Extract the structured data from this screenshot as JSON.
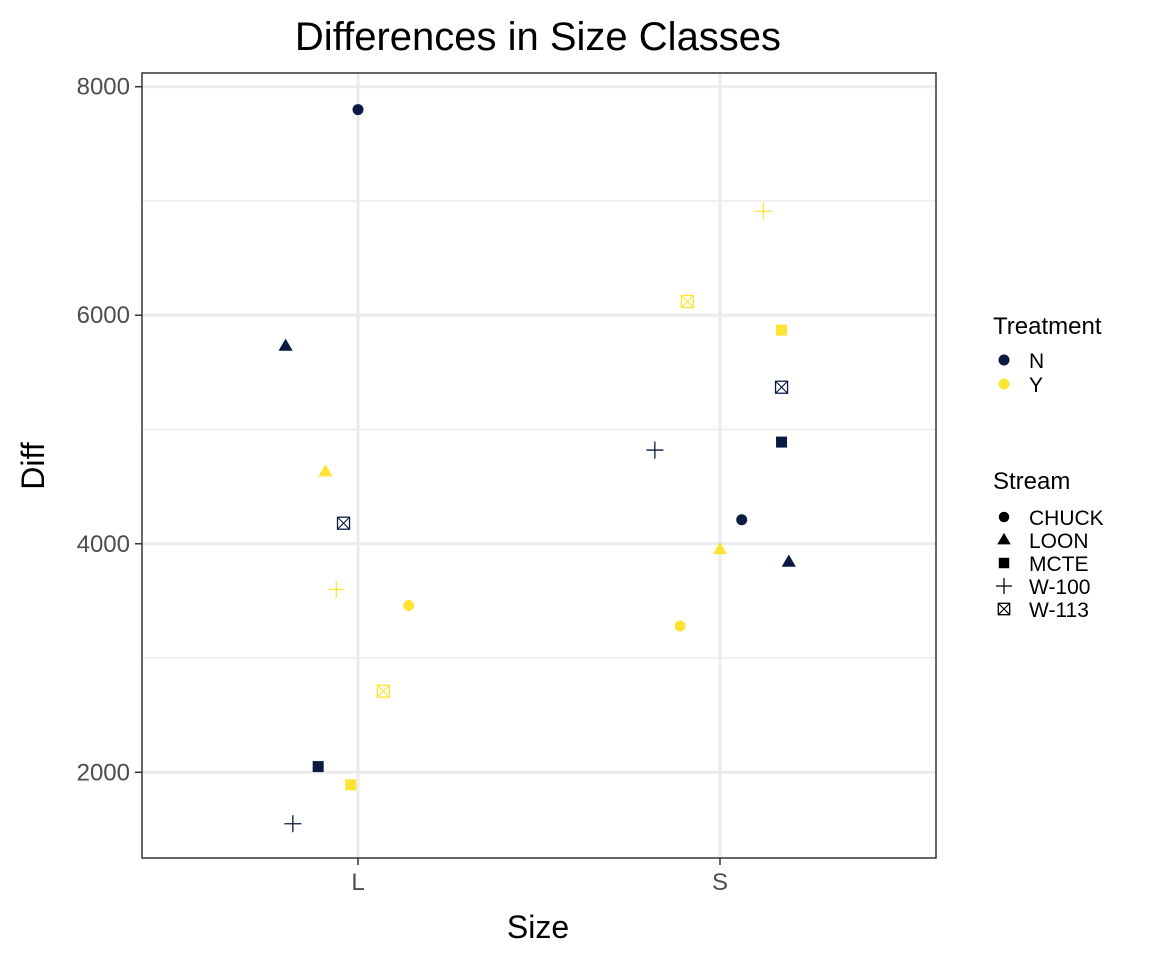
{
  "chart_data": {
    "type": "scatter",
    "title": "Differences in Size Classes",
    "xlabel": "Size",
    "ylabel": "Diff",
    "x_categories": [
      "L",
      "S"
    ],
    "ylim": [
      1250,
      8120
    ],
    "yticks": [
      2000,
      4000,
      6000,
      8000
    ],
    "grid": true,
    "legend_position": "right",
    "treatment_legend": {
      "title": "Treatment",
      "entries": [
        {
          "label": "N",
          "color": "#0b1a40"
        },
        {
          "label": "Y",
          "color": "#fde433"
        }
      ]
    },
    "stream_legend": {
      "title": "Stream",
      "entries": [
        {
          "label": "CHUCK",
          "shape": "circle"
        },
        {
          "label": "LOON",
          "shape": "triangle"
        },
        {
          "label": "MCTE",
          "shape": "square"
        },
        {
          "label": "W-100",
          "shape": "plus"
        },
        {
          "label": "W-113",
          "shape": "boxx"
        }
      ]
    },
    "points": [
      {
        "size": "L",
        "jitter": 0.0,
        "diff": 7800,
        "treatment": "N",
        "stream": "CHUCK"
      },
      {
        "size": "L",
        "jitter": -0.2,
        "diff": 5730,
        "treatment": "N",
        "stream": "LOON"
      },
      {
        "size": "L",
        "jitter": -0.09,
        "diff": 4630,
        "treatment": "Y",
        "stream": "LOON"
      },
      {
        "size": "L",
        "jitter": -0.04,
        "diff": 4180,
        "treatment": "N",
        "stream": "W-113"
      },
      {
        "size": "L",
        "jitter": -0.06,
        "diff": 3600,
        "treatment": "Y",
        "stream": "W-100"
      },
      {
        "size": "L",
        "jitter": 0.14,
        "diff": 3460,
        "treatment": "Y",
        "stream": "CHUCK"
      },
      {
        "size": "L",
        "jitter": 0.07,
        "diff": 2710,
        "treatment": "Y",
        "stream": "W-113"
      },
      {
        "size": "L",
        "jitter": -0.11,
        "diff": 2050,
        "treatment": "N",
        "stream": "MCTE"
      },
      {
        "size": "L",
        "jitter": -0.02,
        "diff": 1890,
        "treatment": "Y",
        "stream": "MCTE"
      },
      {
        "size": "L",
        "jitter": -0.18,
        "diff": 1550,
        "treatment": "N",
        "stream": "W-100"
      },
      {
        "size": "S",
        "jitter": 0.12,
        "diff": 6910,
        "treatment": "Y",
        "stream": "W-100"
      },
      {
        "size": "S",
        "jitter": -0.09,
        "diff": 6120,
        "treatment": "Y",
        "stream": "W-113"
      },
      {
        "size": "S",
        "jitter": 0.17,
        "diff": 5870,
        "treatment": "Y",
        "stream": "MCTE"
      },
      {
        "size": "S",
        "jitter": 0.17,
        "diff": 5370,
        "treatment": "N",
        "stream": "W-113"
      },
      {
        "size": "S",
        "jitter": 0.17,
        "diff": 4890,
        "treatment": "N",
        "stream": "MCTE"
      },
      {
        "size": "S",
        "jitter": -0.18,
        "diff": 4820,
        "treatment": "N",
        "stream": "W-100"
      },
      {
        "size": "S",
        "jitter": 0.06,
        "diff": 4210,
        "treatment": "N",
        "stream": "CHUCK"
      },
      {
        "size": "S",
        "jitter": 0.0,
        "diff": 3950,
        "treatment": "Y",
        "stream": "LOON"
      },
      {
        "size": "S",
        "jitter": 0.19,
        "diff": 3840,
        "treatment": "N",
        "stream": "LOON"
      },
      {
        "size": "S",
        "jitter": -0.11,
        "diff": 3280,
        "treatment": "Y",
        "stream": "CHUCK"
      }
    ]
  }
}
